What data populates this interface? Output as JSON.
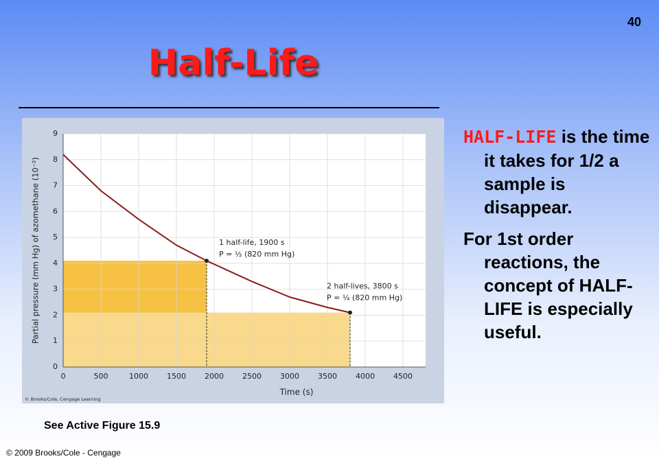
{
  "page_number": "40",
  "title": "Half-Life",
  "bullets": [
    {
      "term": "HALF-LIFE",
      "text": "is the time it takes for 1/2 a sample is disappear."
    },
    {
      "text": "For 1st order reactions, the concept of HALF-LIFE is especially useful."
    }
  ],
  "caption": "See Active Figure 15.9",
  "footer": "© 2009 Brooks/Cole - Cengage",
  "chart_data": {
    "type": "line",
    "x_label": "Time (s)",
    "y_label": "Partial pressure (mm Hg) of azomethane (10⁻²)",
    "credit": "© Brooks/Cole, Cengage Learning",
    "x": [
      0,
      500,
      1000,
      1500,
      1900,
      2500,
      3000,
      3500,
      3800
    ],
    "series": [
      {
        "name": "azomethane",
        "color": "#8b1a1a",
        "values": [
          8.2,
          6.8,
          5.7,
          4.7,
          4.1,
          3.3,
          2.7,
          2.3,
          2.1
        ]
      }
    ],
    "xlim": [
      0,
      4800
    ],
    "ylim": [
      0,
      9
    ],
    "xticks": [
      0,
      500,
      1000,
      1500,
      2000,
      2500,
      3000,
      3500,
      4000,
      4500
    ],
    "yticks": [
      0,
      1,
      2,
      3,
      4,
      5,
      6,
      7,
      8,
      9
    ],
    "grid": true,
    "annotations": [
      {
        "lines": [
          "1 half-life, 1900 s",
          "P = ½ (820 mm Hg)"
        ],
        "at": 4
      },
      {
        "lines": [
          "2 half-lives, 3800 s",
          "P = ¼ (820 mm Hg)"
        ],
        "at": 8
      }
    ]
  }
}
